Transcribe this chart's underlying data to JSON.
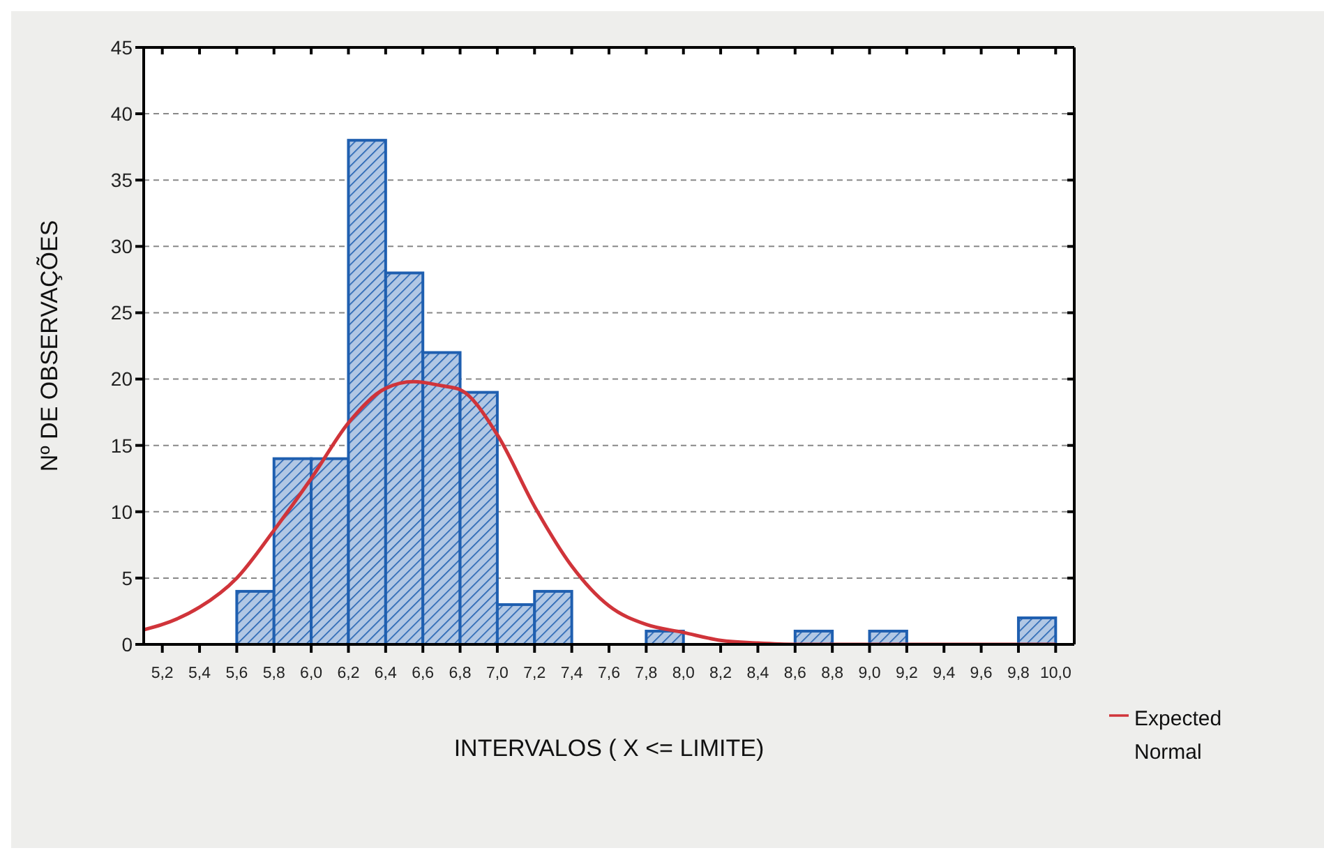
{
  "chart_data": {
    "type": "histogram",
    "xlabel": "INTERVALOS ( X <= LIMITE)",
    "ylabel": "Nº DE OBSERVAÇÕES",
    "bins": [
      5.2,
      5.4,
      5.6,
      5.8,
      6.0,
      6.2,
      6.4,
      6.6,
      6.8,
      7.0,
      7.2,
      7.4,
      7.6,
      7.8,
      8.0,
      8.2,
      8.4,
      8.6,
      8.8,
      9.0,
      9.2,
      9.4,
      9.6,
      9.8,
      10.0
    ],
    "series": [
      {
        "color": "#1f5fb0",
        "values": [
          0,
          0,
          4,
          14,
          14,
          38,
          28,
          22,
          19,
          3,
          4,
          0,
          0,
          1,
          0,
          0,
          0,
          1,
          0,
          1,
          0,
          0,
          0,
          2
        ]
      },
      {
        "type": "line",
        "name": "Expected Normal",
        "color": "#d0343a",
        "x": [
          5.1,
          5.2,
          5.4,
          5.6,
          5.8,
          6.0,
          6.2,
          6.4,
          6.55,
          6.7,
          6.8,
          7.0,
          7.2,
          7.4,
          7.6,
          7.8,
          8.0,
          8.2,
          8.4,
          8.6,
          10.0
        ],
        "values": [
          1.1,
          1.5,
          2.8,
          5.0,
          8.6,
          12.5,
          16.7,
          19.3,
          19.8,
          19.5,
          19.2,
          15.8,
          10.4,
          5.9,
          2.9,
          1.5,
          0.9,
          0.3,
          0.1,
          0,
          0
        ]
      }
    ],
    "xlim": [
      5.1,
      10.1
    ],
    "xticks": [
      {
        "value": 5.2,
        "label": "5,2"
      },
      {
        "value": 5.4,
        "label": "5,4"
      },
      {
        "value": 5.6,
        "label": "5,6"
      },
      {
        "value": 5.8,
        "label": "5,8"
      },
      {
        "value": 6.0,
        "label": "6,0"
      },
      {
        "value": 6.2,
        "label": "6,2"
      },
      {
        "value": 6.4,
        "label": "6,4"
      },
      {
        "value": 6.6,
        "label": "6,6"
      },
      {
        "value": 6.8,
        "label": "6,8"
      },
      {
        "value": 7.0,
        "label": "7,0"
      },
      {
        "value": 7.2,
        "label": "7,2"
      },
      {
        "value": 7.4,
        "label": "7,4"
      },
      {
        "value": 7.6,
        "label": "7,6"
      },
      {
        "value": 7.8,
        "label": "7,8"
      },
      {
        "value": 8.0,
        "label": "8,0"
      },
      {
        "value": 8.2,
        "label": "8,2"
      },
      {
        "value": 8.4,
        "label": "8,4"
      },
      {
        "value": 8.6,
        "label": "8,6"
      },
      {
        "value": 8.8,
        "label": "8,8"
      },
      {
        "value": 9.0,
        "label": "9,0"
      },
      {
        "value": 9.2,
        "label": "9,2"
      },
      {
        "value": 9.4,
        "label": "9,4"
      },
      {
        "value": 9.6,
        "label": "9,6"
      },
      {
        "value": 9.8,
        "label": "9,8"
      },
      {
        "value": 10.0,
        "label": "10,0"
      }
    ],
    "ylim": [
      0,
      45
    ],
    "yticks": [
      0,
      5,
      10,
      15,
      20,
      25,
      30,
      35,
      40,
      45
    ],
    "grid": "y",
    "legend": "bottom right"
  }
}
